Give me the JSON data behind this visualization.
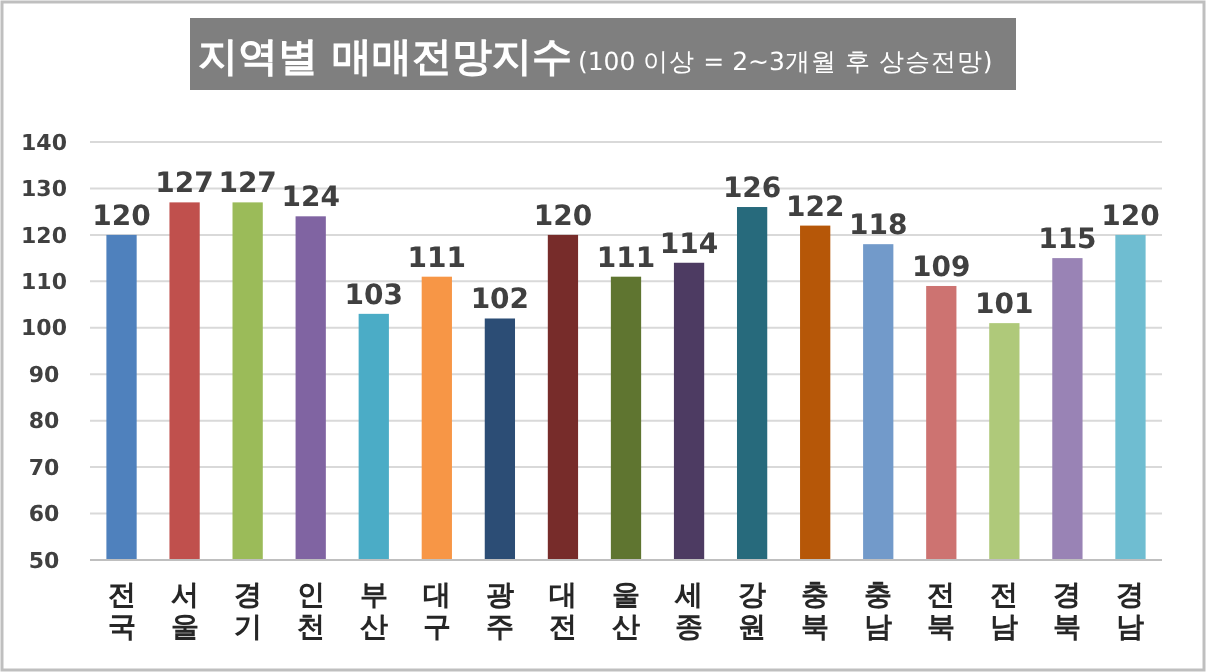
{
  "chart_data": {
    "type": "bar",
    "title": "지역별 매매전망지수",
    "subtitle": "(100 이상 = 2~3개월 후 상승전망)",
    "categories": [
      "전국",
      "서울",
      "경기",
      "인천",
      "부산",
      "대구",
      "광주",
      "대전",
      "울산",
      "세종",
      "강원",
      "충북",
      "충남",
      "전북",
      "전남",
      "경북",
      "경남"
    ],
    "values": [
      120,
      127,
      127,
      124,
      103,
      111,
      102,
      120,
      111,
      114,
      126,
      122,
      118,
      109,
      101,
      115,
      120
    ],
    "colors": [
      "#4f81bd",
      "#c0504d",
      "#9bbb59",
      "#8064a2",
      "#4bacc6",
      "#f79646",
      "#2c4d75",
      "#772c2a",
      "#5f7530",
      "#4d3b62",
      "#276a7c",
      "#b65708",
      "#729aca",
      "#cd7371",
      "#afc97a",
      "#9983b5",
      "#6fbdd1"
    ],
    "ylim": [
      50,
      140
    ],
    "yticks": [
      50,
      60,
      70,
      80,
      90,
      100,
      110,
      120,
      130,
      140
    ],
    "grid": "y",
    "data_labels": true
  }
}
